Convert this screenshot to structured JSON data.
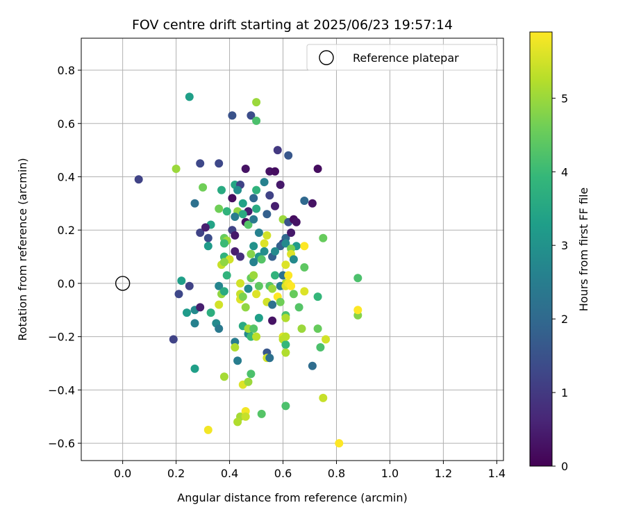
{
  "chart_data": {
    "type": "scatter",
    "title": "FOV centre drift starting at 2025/06/23 19:57:14",
    "xlabel": "Angular distance from reference (arcmin)",
    "ylabel": "Rotation from reference (arcmin)",
    "xlim": [
      -0.155,
      1.425
    ],
    "ylim": [
      -0.665,
      0.92
    ],
    "xticks": [
      "0.0",
      "0.2",
      "0.4",
      "0.6",
      "0.8",
      "1.0",
      "1.2",
      "1.4"
    ],
    "yticks": [
      "0.8",
      "0.6",
      "0.4",
      "0.2",
      "0.0",
      "−0.2",
      "−0.4",
      "−0.6"
    ],
    "grid": true,
    "legend": {
      "position": "top-right",
      "entries": [
        {
          "label": "Reference platepar",
          "marker": "open-circle"
        }
      ]
    },
    "reference_point": {
      "x": 0.0,
      "y": 0.0
    },
    "colorbar": {
      "label": "Hours from first FF file",
      "colormap": "viridis",
      "range": [
        0,
        5.9
      ],
      "ticks": [
        "0",
        "1",
        "2",
        "3",
        "4",
        "5"
      ]
    },
    "series": [
      {
        "points": [
          [
            0.06,
            0.39,
            1.2
          ],
          [
            0.25,
            0.7,
            3.3
          ],
          [
            0.41,
            0.63,
            1.5
          ],
          [
            0.48,
            0.63,
            1.4
          ],
          [
            0.5,
            0.68,
            5.0
          ],
          [
            0.5,
            0.61,
            4.2
          ],
          [
            0.58,
            0.5,
            1.0
          ],
          [
            0.62,
            0.48,
            1.6
          ],
          [
            0.2,
            0.43,
            5.0
          ],
          [
            0.29,
            0.45,
            1.3
          ],
          [
            0.36,
            0.45,
            1.3
          ],
          [
            0.46,
            0.43,
            0.3
          ],
          [
            0.55,
            0.42,
            0.3
          ],
          [
            0.57,
            0.42,
            0.2
          ],
          [
            0.73,
            0.43,
            0.2
          ],
          [
            0.3,
            0.36,
            4.6
          ],
          [
            0.37,
            0.35,
            3.6
          ],
          [
            0.42,
            0.37,
            3.5
          ],
          [
            0.44,
            0.37,
            1.2
          ],
          [
            0.59,
            0.37,
            0.4
          ],
          [
            0.43,
            0.35,
            2.9
          ],
          [
            0.5,
            0.35,
            3.8
          ],
          [
            0.53,
            0.38,
            2.6
          ],
          [
            0.55,
            0.33,
            1.2
          ],
          [
            0.27,
            0.3,
            2.2
          ],
          [
            0.45,
            0.3,
            3.4
          ],
          [
            0.41,
            0.32,
            0.2
          ],
          [
            0.49,
            0.32,
            2.0
          ],
          [
            0.57,
            0.29,
            0.5
          ],
          [
            0.68,
            0.31,
            2.0
          ],
          [
            0.71,
            0.3,
            0.3
          ],
          [
            0.36,
            0.28,
            4.6
          ],
          [
            0.39,
            0.27,
            3.8
          ],
          [
            0.43,
            0.27,
            4.9
          ],
          [
            0.47,
            0.27,
            0.5
          ],
          [
            0.5,
            0.28,
            3.6
          ],
          [
            0.54,
            0.26,
            1.8
          ],
          [
            0.42,
            0.25,
            2.5
          ],
          [
            0.45,
            0.26,
            3.6
          ],
          [
            0.46,
            0.23,
            0.2
          ],
          [
            0.6,
            0.24,
            5.0
          ],
          [
            0.62,
            0.23,
            1.5
          ],
          [
            0.64,
            0.24,
            0.2
          ],
          [
            0.65,
            0.23,
            0.3
          ],
          [
            0.33,
            0.22,
            3.4
          ],
          [
            0.47,
            0.22,
            4.3
          ],
          [
            0.49,
            0.24,
            2.4
          ],
          [
            0.29,
            0.19,
            1.2
          ],
          [
            0.31,
            0.21,
            0.5
          ],
          [
            0.32,
            0.17,
            1.4
          ],
          [
            0.41,
            0.2,
            1.2
          ],
          [
            0.42,
            0.18,
            0.4
          ],
          [
            0.38,
            0.17,
            4.5
          ],
          [
            0.39,
            0.16,
            5.0
          ],
          [
            0.51,
            0.19,
            2.6
          ],
          [
            0.54,
            0.18,
            5.5
          ],
          [
            0.61,
            0.17,
            2.0
          ],
          [
            0.6,
            0.15,
            1.3
          ],
          [
            0.63,
            0.19,
            0.4
          ],
          [
            0.32,
            0.14,
            3.2
          ],
          [
            0.38,
            0.15,
            4.0
          ],
          [
            0.42,
            0.12,
            0.5
          ],
          [
            0.49,
            0.14,
            3.0
          ],
          [
            0.53,
            0.15,
            5.6
          ],
          [
            0.59,
            0.14,
            1.8
          ],
          [
            0.61,
            0.15,
            2.8
          ],
          [
            0.65,
            0.14,
            3.2
          ],
          [
            0.68,
            0.14,
            5.9
          ],
          [
            0.75,
            0.17,
            4.5
          ],
          [
            0.38,
            0.1,
            3.8
          ],
          [
            0.4,
            0.09,
            5.5
          ],
          [
            0.44,
            0.1,
            0.8
          ],
          [
            0.48,
            0.11,
            4.8
          ],
          [
            0.51,
            0.1,
            3.1
          ],
          [
            0.53,
            0.12,
            2.9
          ],
          [
            0.56,
            0.1,
            1.8
          ],
          [
            0.57,
            0.12,
            2.8
          ],
          [
            0.63,
            0.13,
            4.7
          ],
          [
            0.63,
            0.11,
            5.6
          ],
          [
            0.64,
            0.09,
            2.8
          ],
          [
            0.37,
            0.07,
            5.4
          ],
          [
            0.38,
            0.08,
            4.9
          ],
          [
            0.49,
            0.08,
            2.6
          ],
          [
            0.52,
            0.09,
            4.3
          ],
          [
            0.61,
            0.07,
            5.6
          ],
          [
            0.68,
            0.06,
            4.4
          ],
          [
            0.39,
            0.03,
            3.8
          ],
          [
            0.48,
            0.02,
            4.5
          ],
          [
            0.49,
            0.03,
            5.0
          ],
          [
            0.57,
            0.03,
            3.8
          ],
          [
            0.6,
            0.03,
            2.2
          ],
          [
            0.61,
            0.0,
            5.2
          ],
          [
            0.62,
            0.03,
            5.9
          ],
          [
            0.22,
            0.01,
            3.3
          ],
          [
            0.25,
            -0.01,
            1.2
          ],
          [
            0.36,
            -0.01,
            2.7
          ],
          [
            0.37,
            -0.04,
            4.9
          ],
          [
            0.38,
            -0.03,
            3.6
          ],
          [
            0.44,
            0.0,
            5.5
          ],
          [
            0.44,
            -0.04,
            5.4
          ],
          [
            0.47,
            -0.02,
            2.8
          ],
          [
            0.51,
            -0.01,
            4.4
          ],
          [
            0.55,
            -0.01,
            4.3
          ],
          [
            0.56,
            -0.02,
            5.0
          ],
          [
            0.59,
            -0.01,
            2.5
          ],
          [
            0.61,
            -0.01,
            5.6
          ],
          [
            0.62,
            0.0,
            5.8
          ],
          [
            0.63,
            -0.01,
            5.9
          ],
          [
            0.68,
            -0.03,
            5.6
          ],
          [
            0.21,
            -0.04,
            1.3
          ],
          [
            0.36,
            -0.08,
            5.5
          ],
          [
            0.44,
            -0.06,
            5.6
          ],
          [
            0.45,
            -0.05,
            4.7
          ],
          [
            0.5,
            -0.04,
            5.6
          ],
          [
            0.54,
            -0.07,
            5.5
          ],
          [
            0.56,
            -0.08,
            2.2
          ],
          [
            0.58,
            -0.05,
            5.9
          ],
          [
            0.59,
            -0.07,
            4.6
          ],
          [
            0.61,
            -0.12,
            4.2
          ],
          [
            0.64,
            -0.04,
            4.5
          ],
          [
            0.66,
            -0.09,
            4.3
          ],
          [
            0.73,
            -0.05,
            3.9
          ],
          [
            0.88,
            0.02,
            4.2
          ],
          [
            0.27,
            -0.1,
            2.8
          ],
          [
            0.29,
            -0.09,
            0.5
          ],
          [
            0.33,
            -0.11,
            3.7
          ],
          [
            0.35,
            -0.15,
            2.8
          ],
          [
            0.36,
            -0.17,
            2.4
          ],
          [
            0.46,
            -0.09,
            4.9
          ],
          [
            0.51,
            -0.13,
            3.3
          ],
          [
            0.56,
            -0.14,
            0.3
          ],
          [
            0.61,
            -0.13,
            5.2
          ],
          [
            0.88,
            -0.12,
            4.8
          ],
          [
            0.88,
            -0.1,
            5.9
          ],
          [
            0.24,
            -0.11,
            3.2
          ],
          [
            0.27,
            -0.15,
            2.6
          ],
          [
            0.42,
            -0.22,
            2.5
          ],
          [
            0.45,
            -0.16,
            3.6
          ],
          [
            0.47,
            -0.19,
            2.8
          ],
          [
            0.47,
            -0.17,
            5.1
          ],
          [
            0.48,
            -0.2,
            4.0
          ],
          [
            0.49,
            -0.17,
            4.3
          ],
          [
            0.5,
            -0.2,
            5.3
          ],
          [
            0.6,
            -0.2,
            5.6
          ],
          [
            0.6,
            -0.21,
            5.3
          ],
          [
            0.61,
            -0.23,
            3.9
          ],
          [
            0.61,
            -0.2,
            5.3
          ],
          [
            0.67,
            -0.17,
            5.0
          ],
          [
            0.73,
            -0.17,
            4.5
          ],
          [
            0.74,
            -0.24,
            4.2
          ],
          [
            0.76,
            -0.21,
            5.5
          ],
          [
            0.19,
            -0.21,
            1.2
          ],
          [
            0.42,
            -0.24,
            5.2
          ],
          [
            0.43,
            -0.29,
            2.5
          ],
          [
            0.54,
            -0.26,
            1.6
          ],
          [
            0.54,
            -0.28,
            5.5
          ],
          [
            0.55,
            -0.28,
            2.2
          ],
          [
            0.61,
            -0.26,
            5.2
          ],
          [
            0.71,
            -0.31,
            2.1
          ],
          [
            0.27,
            -0.32,
            3.3
          ],
          [
            0.38,
            -0.35,
            5.1
          ],
          [
            0.48,
            -0.34,
            4.2
          ],
          [
            0.45,
            -0.38,
            5.6
          ],
          [
            0.47,
            -0.37,
            5.0
          ],
          [
            0.61,
            -0.46,
            4.2
          ],
          [
            0.75,
            -0.43,
            5.4
          ],
          [
            0.44,
            -0.5,
            5.1
          ],
          [
            0.46,
            -0.48,
            5.8
          ],
          [
            0.46,
            -0.5,
            5.4
          ],
          [
            0.52,
            -0.49,
            4.3
          ],
          [
            0.32,
            -0.55,
            5.8
          ],
          [
            0.43,
            -0.52,
            5.2
          ],
          [
            0.81,
            -0.6,
            5.9
          ]
        ]
      }
    ]
  }
}
